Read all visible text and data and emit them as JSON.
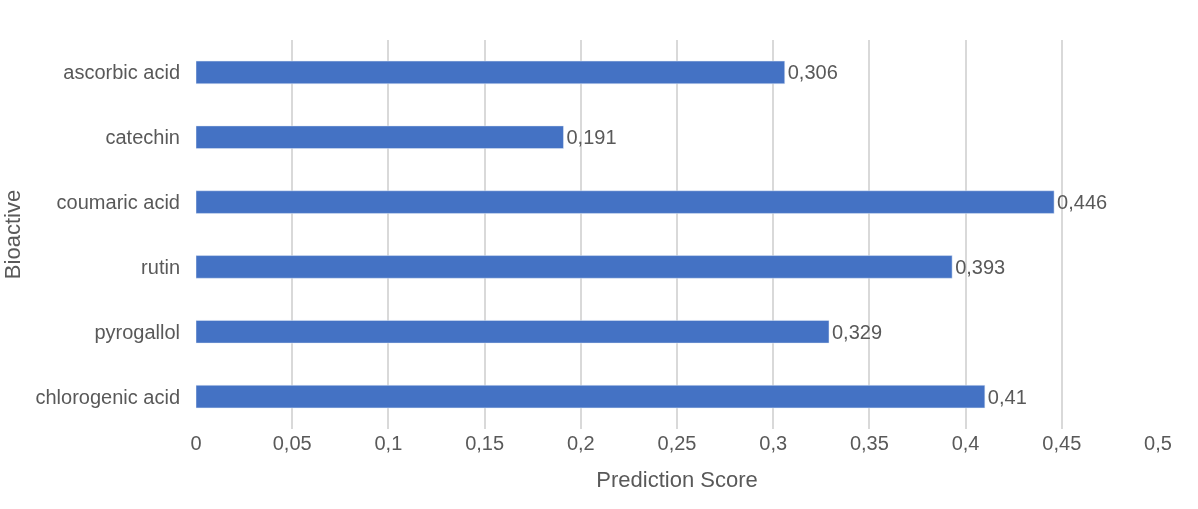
{
  "chart_data": {
    "type": "bar",
    "orientation": "horizontal",
    "xlabel": "Prediction Score",
    "ylabel": "Bioactive",
    "categories": [
      "ascorbic acid",
      "catechin",
      "coumaric acid",
      "rutin",
      "pyrogallol",
      "chlorogenic acid"
    ],
    "values": [
      0.306,
      0.191,
      0.446,
      0.393,
      0.329,
      0.41
    ],
    "value_labels": [
      "0,306",
      "0,191",
      "0,446",
      "0,393",
      "0,329",
      "0,41"
    ],
    "color": "#4472c4",
    "xlim": [
      0,
      0.5
    ],
    "xticks": [
      0,
      {
        "value": 0.05,
        "label": "0,05"
      },
      {
        "value": 0.1,
        "label": "0,1"
      },
      {
        "value": 0.15,
        "label": "0,15"
      },
      {
        "value": 0.2,
        "label": "0,2"
      },
      {
        "value": 0.25,
        "label": "0,25"
      },
      {
        "value": 0.3,
        "label": "0,3"
      },
      {
        "value": 0.35,
        "label": "0,35"
      },
      {
        "value": 0.4,
        "label": "0,4"
      },
      {
        "value": 0.45,
        "label": "0,45"
      },
      {
        "value": 0.5,
        "label": "0,5"
      }
    ],
    "grid": "x",
    "legend": false
  }
}
